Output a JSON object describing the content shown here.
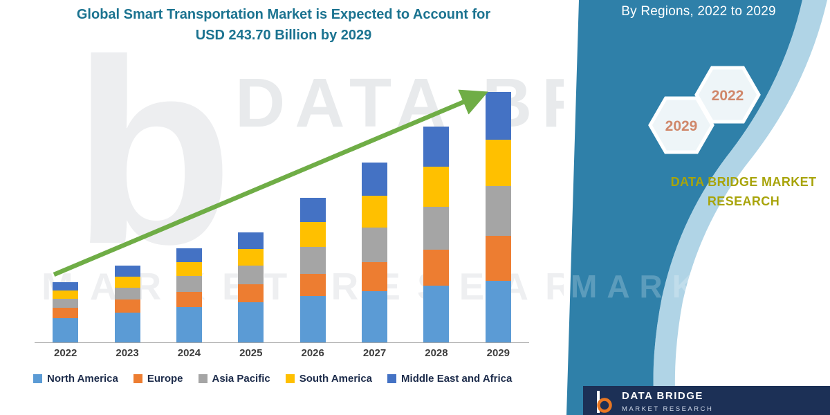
{
  "title": {
    "line1": "Global Smart Transportation Market is Expected to Account for",
    "line2": "USD 243.70 Billion by 2029"
  },
  "right_panel": {
    "heading": "By Regions, 2022 to 2029",
    "hexagon_front": "2022",
    "hexagon_back": "2029",
    "brand_line1": "DATA BRIDGE MARKET",
    "brand_line2": "RESEARCH",
    "logo": {
      "letter": "b",
      "name": "DATA BRIDGE",
      "tagline": "MARKET RESEARCH"
    }
  },
  "watermark": {
    "logo_letter": "b",
    "primary": "DATA BRIDGE",
    "secondary": "MARKET RESEARCH"
  },
  "colors": {
    "band_blue": "#2F80A9",
    "band_light": "#6FB0D2",
    "title_teal": "#1B7390",
    "arrow_green": "#6FAD46",
    "hexagon_year_text": "#D0876A",
    "brand_yellow": "#A8A40A",
    "logo_navy": "#1C3056"
  },
  "chart_data": {
    "type": "bar",
    "stacked": true,
    "title": "Global Smart Transportation Market is Expected to Account for USD 243.70 Billion by 2029",
    "unit": "USD Billion",
    "categories": [
      "2022",
      "2023",
      "2024",
      "2025",
      "2026",
      "2027",
      "2028",
      "2029"
    ],
    "series": [
      {
        "name": "North America",
        "color": "#5B9BD5",
        "values": [
          23.5,
          29,
          34.5,
          39,
          45,
          50,
          55,
          60
        ]
      },
      {
        "name": "Europe",
        "color": "#ED7D31",
        "values": [
          10,
          12.5,
          15,
          17.5,
          22,
          28,
          35,
          44
        ]
      },
      {
        "name": "Asia Pacific",
        "color": "#A5A5A5",
        "values": [
          9,
          12,
          15,
          18.5,
          26,
          34,
          42,
          48
        ]
      },
      {
        "name": "South America",
        "color": "#FFC000",
        "values": [
          8.3,
          10.7,
          13.5,
          16,
          24,
          31,
          39,
          45
        ]
      },
      {
        "name": "Middle East and Africa",
        "color": "#4472C4",
        "values": [
          7.8,
          10.5,
          13.5,
          16,
          23.7,
          32,
          39,
          46.7
        ]
      }
    ],
    "totals_estimated": [
      58.6,
      74.7,
      91.5,
      107,
      140.7,
      175,
      210,
      243.7
    ],
    "ylim": [
      0,
      250
    ],
    "grid": false,
    "y_axis_visible": false,
    "legend_position": "bottom",
    "annotations": [
      "green upward trend arrow from 2022 bar to 2029 bar"
    ]
  }
}
